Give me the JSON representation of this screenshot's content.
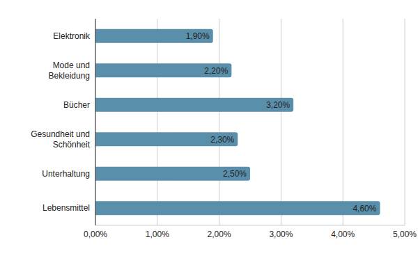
{
  "chart_data": {
    "type": "bar",
    "orientation": "horizontal",
    "categories": [
      "Elektronik",
      "Mode und Bekleidung",
      "Bücher",
      "Gesundheit und Schönheit",
      "Unterhaltung",
      "Lebensmittel"
    ],
    "values": [
      1.9,
      2.2,
      3.2,
      2.3,
      2.5,
      4.6
    ],
    "value_labels": [
      "1,90%",
      "2,20%",
      "3,20%",
      "2,30%",
      "2,50%",
      "4,60%"
    ],
    "color": "#5a8fab",
    "xlim": [
      0,
      5
    ],
    "xticks": [
      {
        "value": 0,
        "label": "0,00%"
      },
      {
        "value": 1,
        "label": "1,00%"
      },
      {
        "value": 2,
        "label": "2,00%"
      },
      {
        "value": 3,
        "label": "3,00%"
      },
      {
        "value": 4,
        "label": "4,00%"
      },
      {
        "value": 5,
        "label": "5,00%"
      }
    ],
    "grid": true,
    "data_labels": true
  }
}
